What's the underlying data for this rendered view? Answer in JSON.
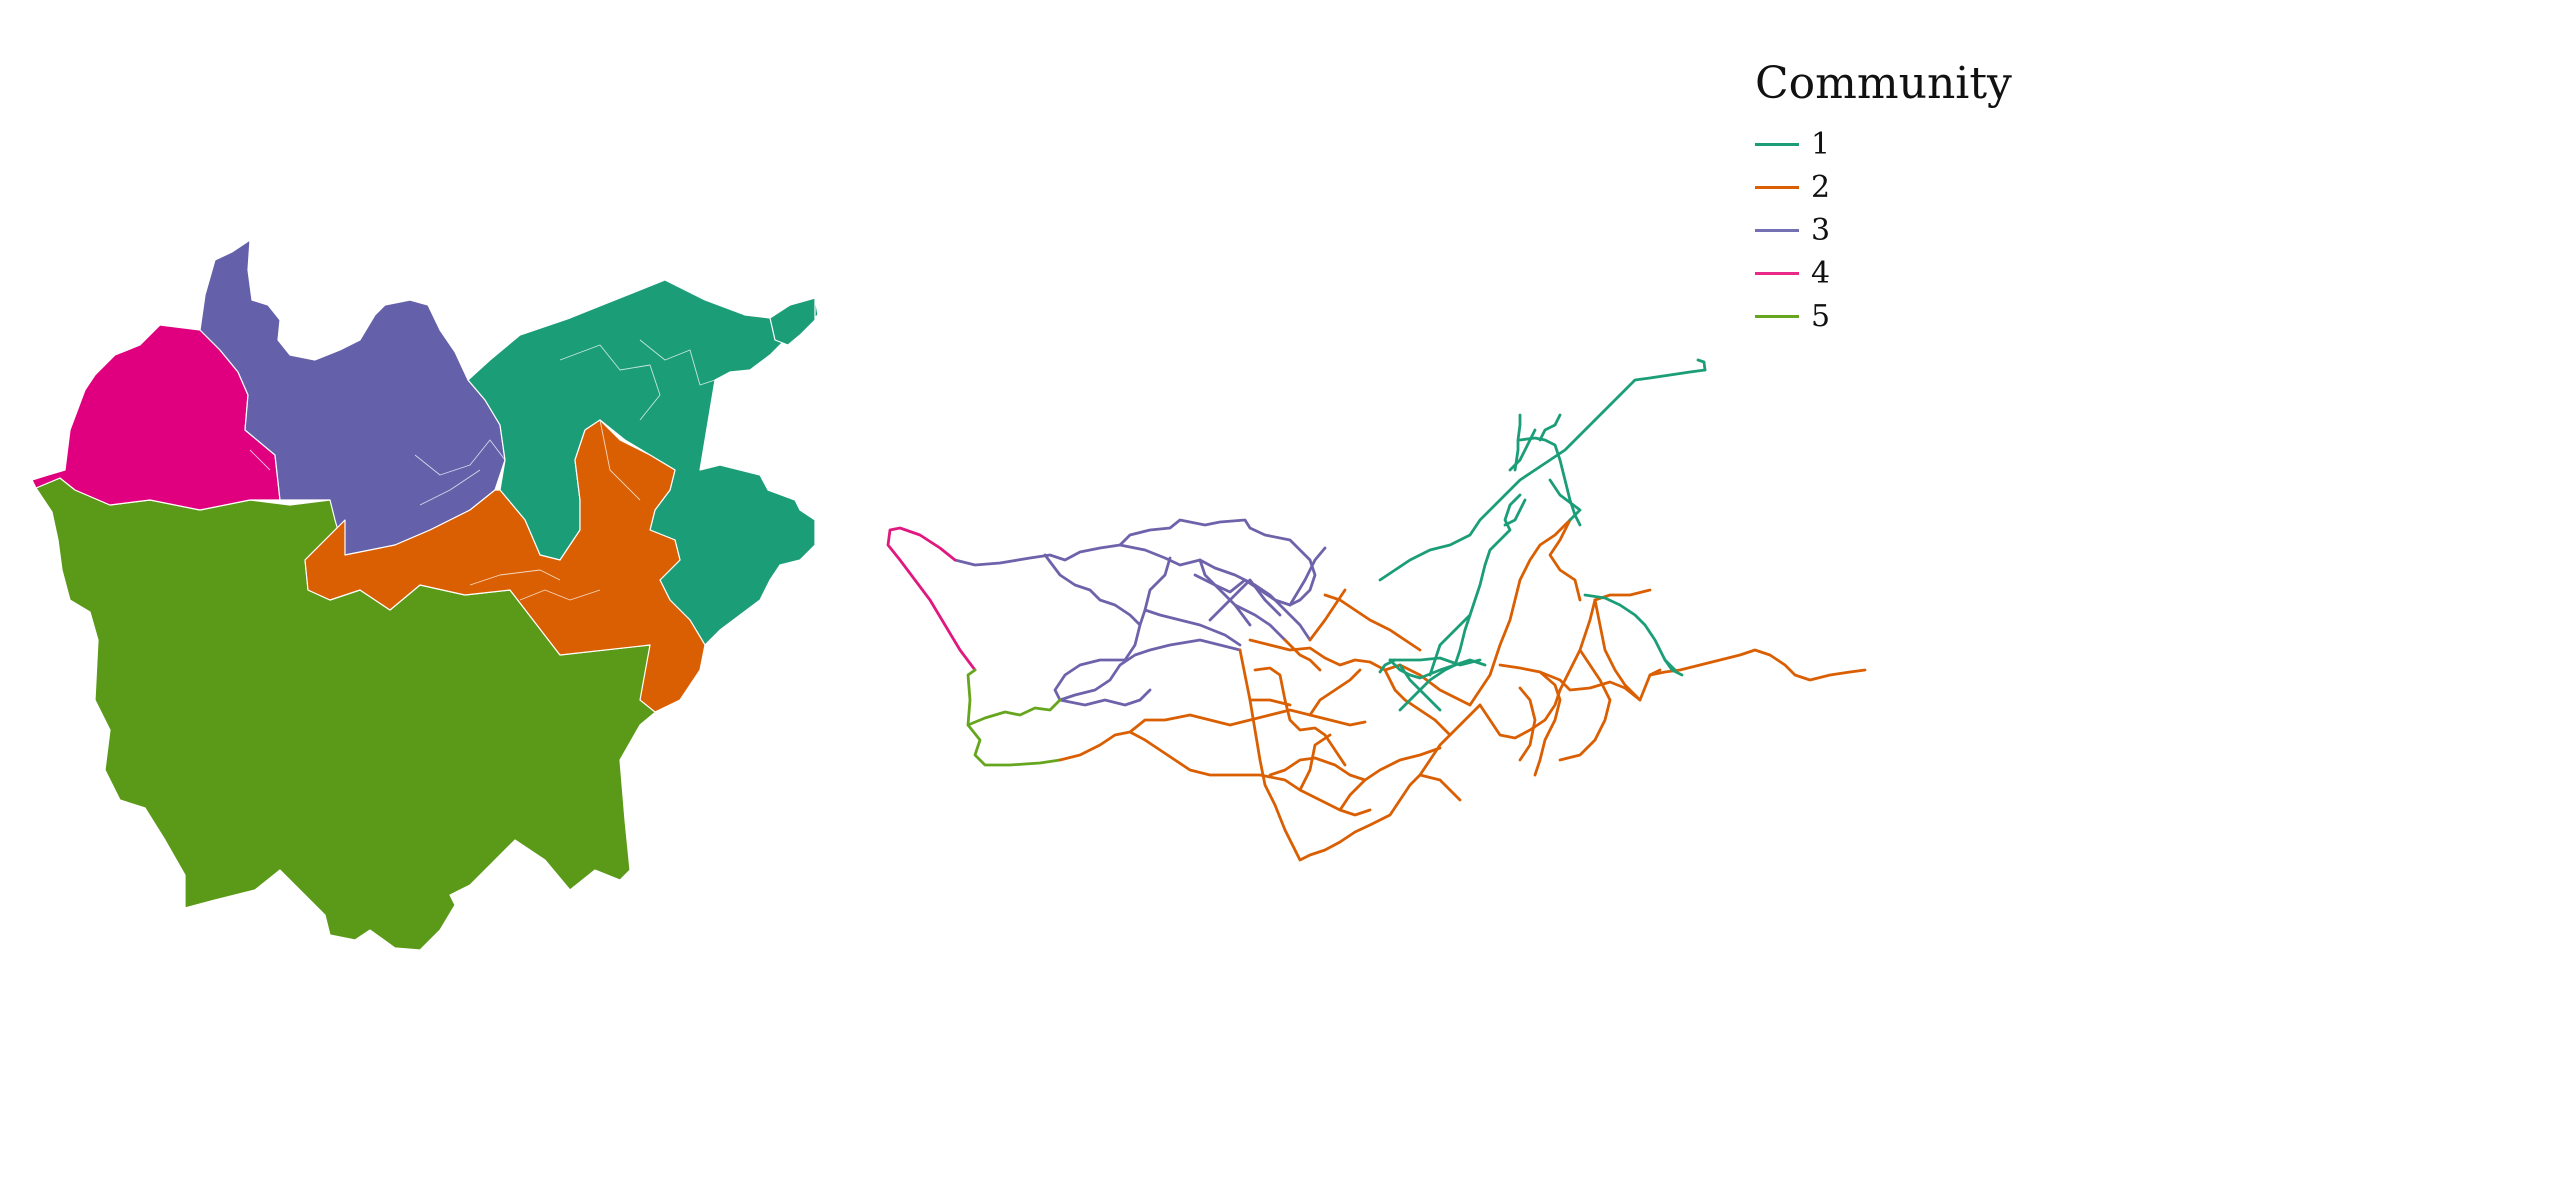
{
  "legend": {
    "title": "Community",
    "items": [
      {
        "label": "1",
        "color": "#1b9e77"
      },
      {
        "label": "2",
        "color": "#d95f02"
      },
      {
        "label": "3",
        "color": "#7570b3"
      },
      {
        "label": "4",
        "color": "#e7298a"
      },
      {
        "label": "5",
        "color": "#66a61e"
      }
    ]
  },
  "map": {
    "fill_colors": {
      "c1": "#1b9e77",
      "c2": "#d95f02",
      "c3": "#6460aa",
      "c4": "#e0007f",
      "c5": "#5a9a18"
    },
    "stroke_colors": {
      "c1": "#1b9e77",
      "c2": "#d95f02",
      "c3": "#6e63ab",
      "c4": "#e0187f",
      "c5": "#66a61e"
    }
  }
}
